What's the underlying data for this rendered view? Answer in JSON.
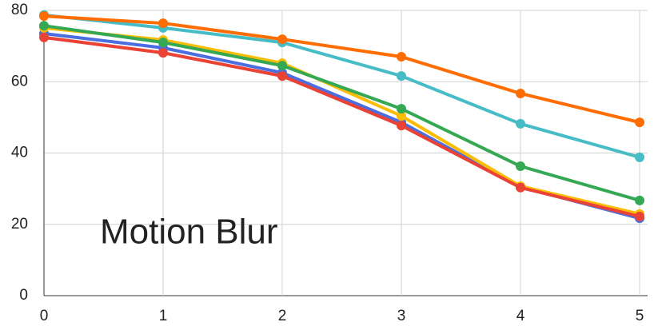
{
  "chart_data": {
    "type": "line",
    "annotation": "Motion Blur",
    "x": [
      0,
      1,
      2,
      3,
      4,
      5
    ],
    "xlim": [
      0,
      5
    ],
    "xticks": [
      0,
      1,
      2,
      3,
      4,
      5
    ],
    "ylim": [
      0,
      80
    ],
    "yticks": [
      0,
      20,
      40,
      60,
      80
    ],
    "grid": true,
    "series": [
      {
        "color": "#4a6ee0",
        "values": [
          73.5,
          69.5,
          62.5,
          48.6,
          30.5,
          21.7
        ]
      },
      {
        "color": "#fbbc04",
        "values": [
          75.1,
          71.7,
          65.2,
          50.4,
          30.7,
          22.9
        ]
      },
      {
        "color": "#34a853",
        "values": [
          75.7,
          71.0,
          64.5,
          52.4,
          36.3,
          26.7
        ]
      },
      {
        "color": "#46bdc6",
        "values": [
          78.7,
          75.1,
          71.0,
          61.6,
          48.2,
          38.8
        ]
      },
      {
        "color": "#ff6d01",
        "values": [
          78.4,
          76.4,
          71.9,
          67.0,
          56.7,
          48.6
        ]
      },
      {
        "color": "#ea4335",
        "values": [
          72.4,
          68.1,
          61.6,
          47.7,
          30.3,
          22.2
        ]
      }
    ]
  }
}
